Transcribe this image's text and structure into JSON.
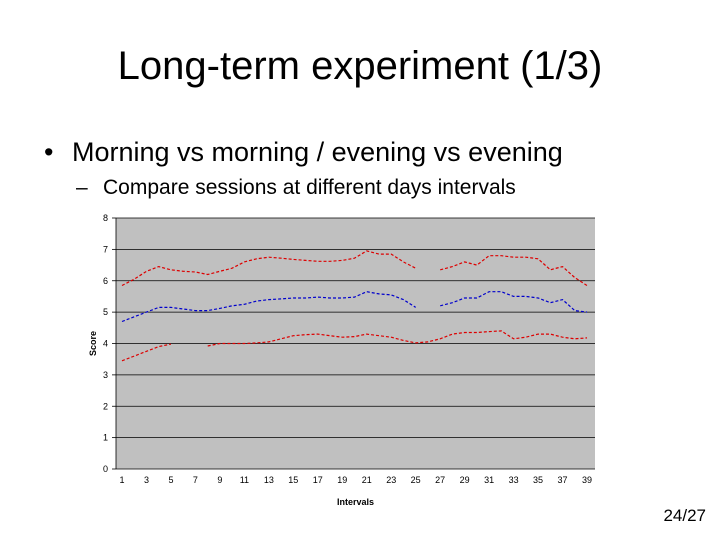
{
  "slide": {
    "title": "Long-term experiment (1/3)",
    "bullet": "Morning vs morning / evening vs evening",
    "bullet_marker": "•",
    "subbullet": "Compare sessions at different days intervals",
    "subbullet_marker": "–",
    "page_number": "24/27"
  },
  "colors": {
    "plot_bg": "#c0c0c0",
    "mean": "#0000cc",
    "bounds": "#dd0000"
  },
  "chart_data": {
    "type": "line",
    "title": "",
    "xlabel": "Intervals",
    "ylabel": "Score",
    "ylim": [
      0,
      8
    ],
    "y_ticks": [
      0,
      1,
      2,
      3,
      4,
      5,
      6,
      7,
      8
    ],
    "x_ticks": [
      1,
      3,
      5,
      7,
      9,
      11,
      13,
      15,
      17,
      19,
      21,
      23,
      25,
      27,
      29,
      31,
      33,
      35,
      37,
      39
    ],
    "x": [
      1,
      2,
      3,
      4,
      5,
      6,
      7,
      8,
      9,
      10,
      11,
      12,
      13,
      14,
      15,
      16,
      17,
      18,
      19,
      20,
      21,
      22,
      23,
      24,
      25,
      26,
      27,
      28,
      29,
      30,
      31,
      32,
      33,
      34,
      35,
      36,
      37,
      38,
      39
    ],
    "grid": "horizontal",
    "series": [
      {
        "role": "upper",
        "style": "dashed",
        "color": "#dd0000",
        "values": [
          5.85,
          6.05,
          6.3,
          6.45,
          6.35,
          6.3,
          6.28,
          6.2,
          6.3,
          6.4,
          6.6,
          6.7,
          6.75,
          6.72,
          6.68,
          6.65,
          6.62,
          6.62,
          6.65,
          6.72,
          6.95,
          6.85,
          6.85,
          6.6,
          6.4,
          null,
          6.35,
          6.45,
          6.6,
          6.5,
          6.8,
          6.8,
          6.75,
          6.75,
          6.7,
          6.35,
          6.45,
          6.1,
          5.85
        ]
      },
      {
        "role": "mean",
        "style": "dashed",
        "color": "#0000cc",
        "values": [
          4.7,
          4.85,
          5.0,
          5.15,
          5.15,
          5.1,
          5.05,
          5.05,
          5.12,
          5.2,
          5.25,
          5.35,
          5.4,
          5.42,
          5.45,
          5.45,
          5.48,
          5.45,
          5.45,
          5.48,
          5.65,
          5.58,
          5.55,
          5.4,
          5.15,
          null,
          5.2,
          5.3,
          5.45,
          5.45,
          5.65,
          5.65,
          5.5,
          5.5,
          5.45,
          5.3,
          5.4,
          5.05,
          5.0
        ]
      },
      {
        "role": "lower",
        "style": "dashed",
        "color": "#dd0000",
        "values": [
          3.45,
          3.6,
          3.75,
          3.9,
          3.98,
          null,
          null,
          3.92,
          4.0,
          4.0,
          4.0,
          4.02,
          4.05,
          4.15,
          4.25,
          4.28,
          4.3,
          4.25,
          4.2,
          4.22,
          4.3,
          4.25,
          4.2,
          4.1,
          4.02,
          4.05,
          4.15,
          4.3,
          4.35,
          4.35,
          4.38,
          4.4,
          4.15,
          4.2,
          4.3,
          4.3,
          4.2,
          4.15,
          4.18
        ]
      }
    ]
  }
}
